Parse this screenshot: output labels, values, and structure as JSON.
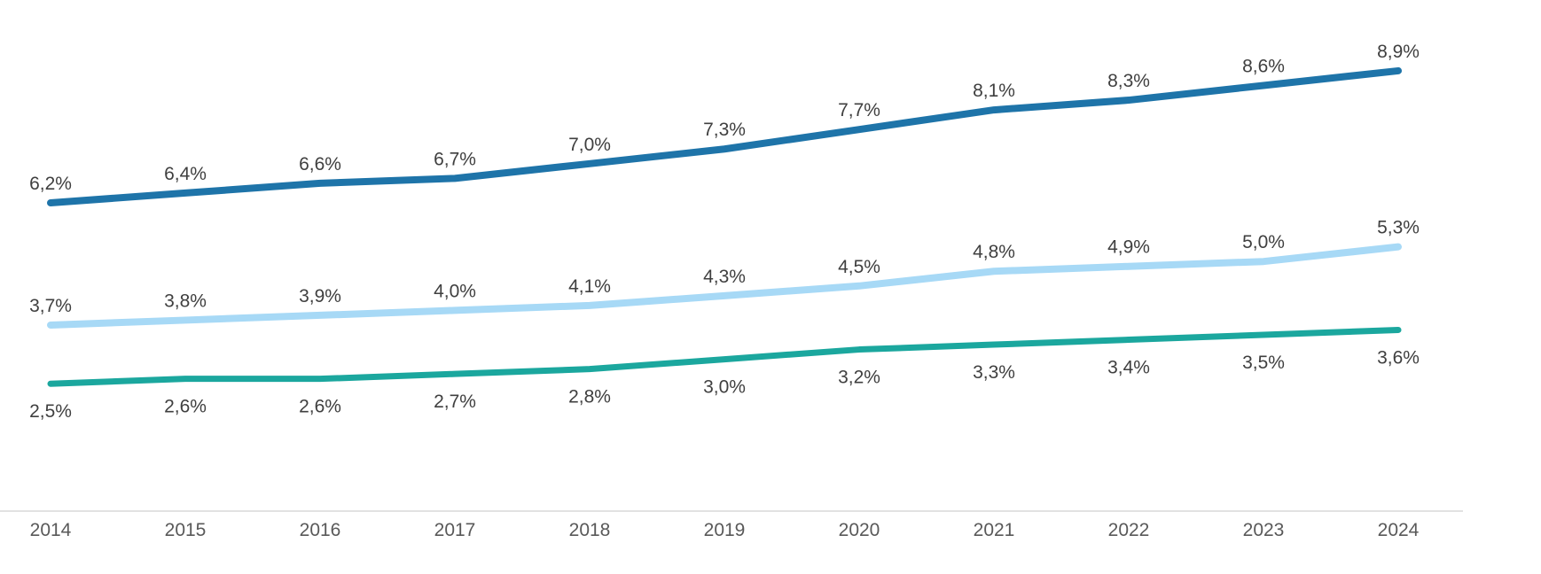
{
  "chart_data": {
    "type": "line",
    "title": "",
    "xlabel": "",
    "ylabel": "",
    "grid": false,
    "legend_position": "none",
    "x": [
      2014,
      2015,
      2016,
      2017,
      2018,
      2019,
      2020,
      2021,
      2022,
      2023,
      2024
    ],
    "x_tick_labels": [
      "2014",
      "2015",
      "2016",
      "2017",
      "2018",
      "2019",
      "2020",
      "2021",
      "2022",
      "2023",
      "2024"
    ],
    "ylim": [
      0,
      10.4
    ],
    "series": [
      {
        "id": "series-1",
        "color": "#1e74a9",
        "stroke_width": 8,
        "label_position": "above",
        "values": [
          6.2,
          6.4,
          6.6,
          6.7,
          7.0,
          7.3,
          7.7,
          8.1,
          8.3,
          8.6,
          8.9
        ],
        "labels": [
          "6,2%",
          "6,4%",
          "6,6%",
          "6,7%",
          "7,0%",
          "7,3%",
          "7,7%",
          "8,1%",
          "8,3%",
          "8,6%",
          "8,9%"
        ]
      },
      {
        "id": "series-2",
        "color": "#a7d9f6",
        "stroke_width": 8,
        "label_position": "above",
        "values": [
          3.7,
          3.8,
          3.9,
          4.0,
          4.1,
          4.3,
          4.5,
          4.8,
          4.9,
          5.0,
          5.3
        ],
        "labels": [
          "3,7%",
          "3,8%",
          "3,9%",
          "4,0%",
          "4,1%",
          "4,3%",
          "4,5%",
          "4,8%",
          "4,9%",
          "5,0%",
          "5,3%"
        ]
      },
      {
        "id": "series-3",
        "color": "#1ba79e",
        "stroke_width": 7,
        "label_position": "below",
        "values": [
          2.5,
          2.6,
          2.6,
          2.7,
          2.8,
          3.0,
          3.2,
          3.3,
          3.4,
          3.5,
          3.6
        ],
        "labels": [
          "2,5%",
          "2,6%",
          "2,6%",
          "2,7%",
          "2,8%",
          "3,0%",
          "3,2%",
          "3,3%",
          "3,4%",
          "3,5%",
          "3,6%"
        ]
      }
    ],
    "style": {
      "background_color": "#ffffff",
      "data_label_color": "#3f3f3f",
      "tick_label_color": "#595959",
      "axis_line_color": "#d9d9d9"
    }
  }
}
